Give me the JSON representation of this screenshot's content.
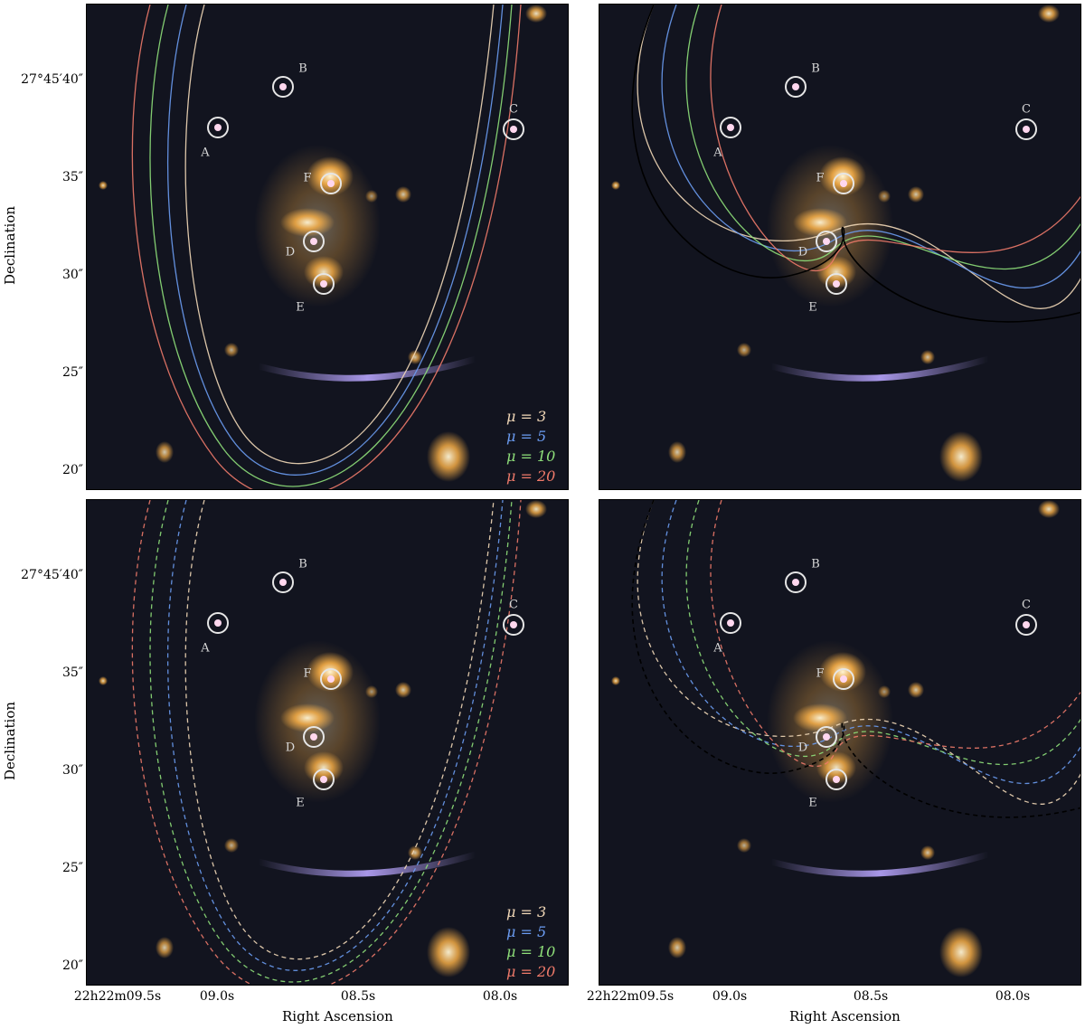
{
  "axes": {
    "xlabel": "Right Ascension",
    "ylabel": "Declination",
    "yticks": [
      "27°45′40″",
      "35″",
      "30″",
      "25″",
      "20″"
    ],
    "xticks": [
      "22h22m09.5s",
      "09.0s",
      "08.5s",
      "08.0s"
    ]
  },
  "image_labels": [
    "A",
    "B",
    "C",
    "D",
    "E",
    "F"
  ],
  "legend": {
    "items": [
      {
        "label": "μ = 3",
        "color": "#f3d9b8"
      },
      {
        "label": "μ = 5",
        "color": "#6b9cf2"
      },
      {
        "label": "μ = 10",
        "color": "#8fe07a"
      },
      {
        "label": "μ = 20",
        "color": "#f07a6a"
      }
    ]
  },
  "colors": {
    "sky": "#12141f",
    "circle": "#e6e6e6",
    "galaxy": "#ffb347",
    "arc": "#b9a6ff"
  }
}
